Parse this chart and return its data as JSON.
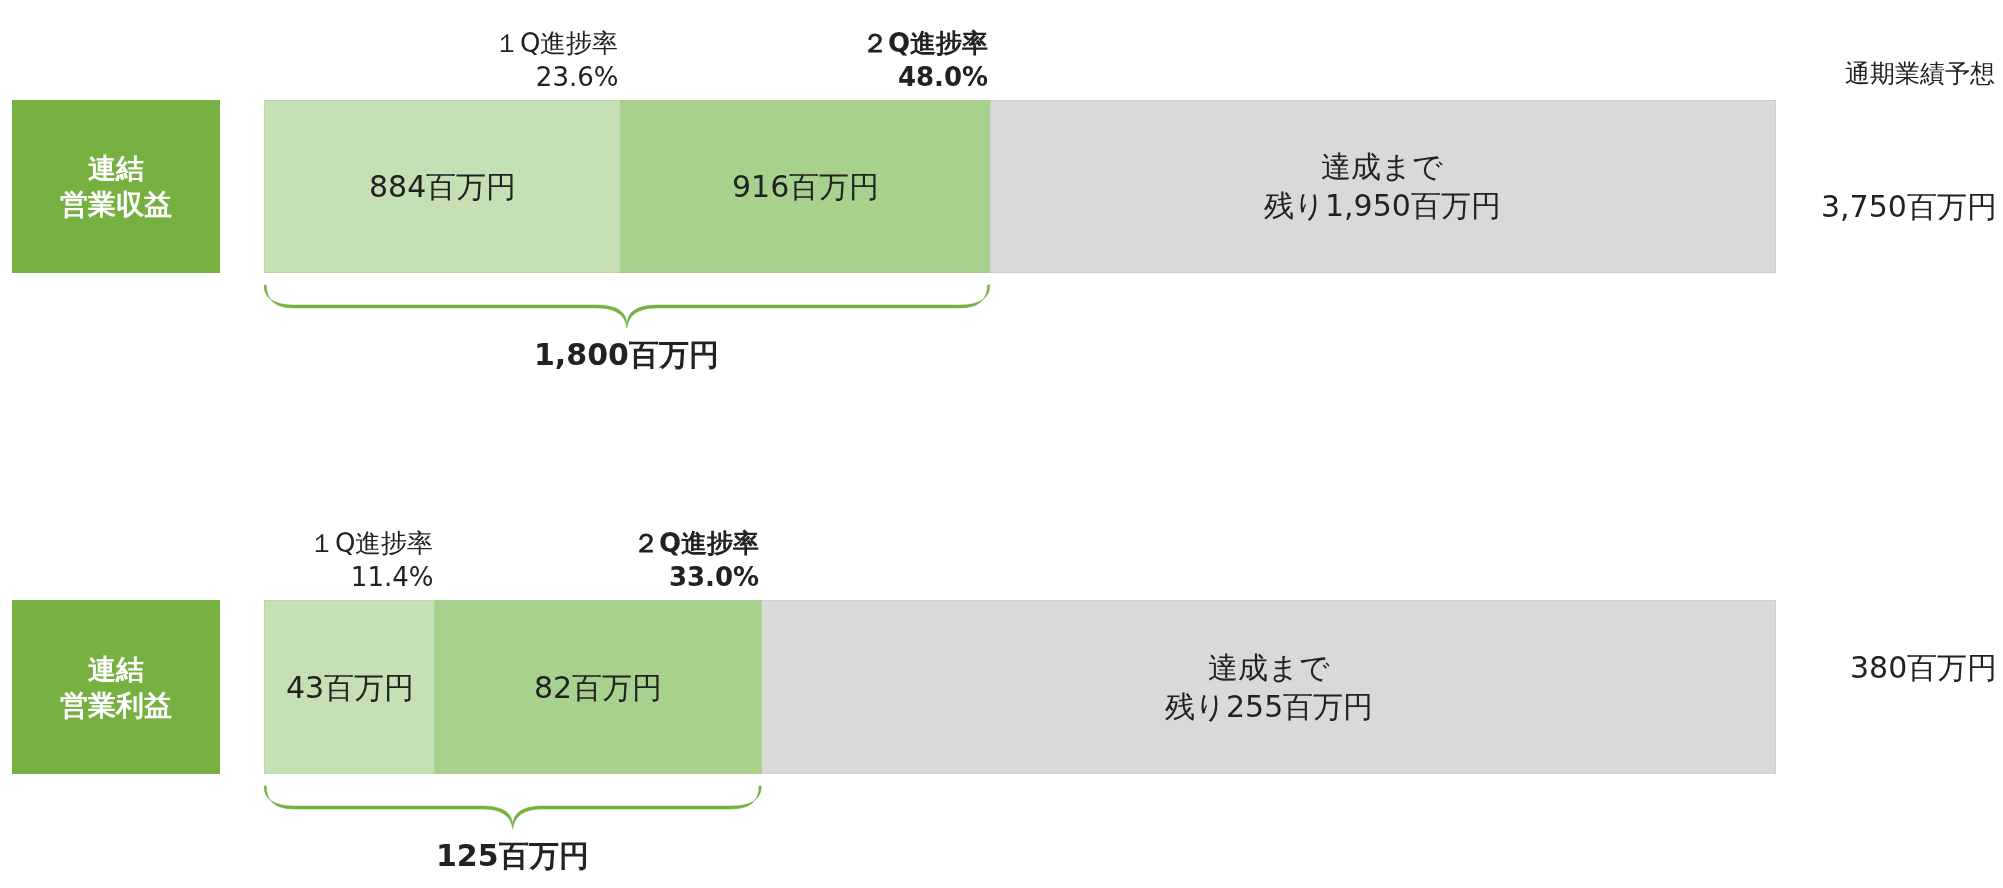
{
  "chart_data": [
    {
      "type": "bar",
      "orientation": "horizontal",
      "stacked": true,
      "categories": [
        "連結営業収益"
      ],
      "xlim": [
        0,
        3750
      ],
      "series": [
        {
          "color": "#c5e0b4",
          "values": [
            884
          ],
          "value_labels": [
            "884百万円"
          ]
        },
        {
          "color": "#a9d18e",
          "values": [
            916
          ],
          "value_labels": [
            "916百万円"
          ]
        },
        {
          "color": "#d9d9d9",
          "values": [
            1950
          ],
          "value_labels": [
            "達成まで残り1,950百万円"
          ]
        }
      ],
      "annotations": [
        "１Q進捗率\n23.6%",
        "２Q進捗率\n48.0%",
        "1,800百万円",
        "3,750百万円",
        "通期業績予想"
      ]
    },
    {
      "type": "bar",
      "orientation": "horizontal",
      "stacked": true,
      "categories": [
        "連結営業利益"
      ],
      "xlim": [
        0,
        380
      ],
      "series": [
        {
          "color": "#c5e0b4",
          "values": [
            43
          ],
          "value_labels": [
            "43百万円"
          ]
        },
        {
          "color": "#a9d18e",
          "values": [
            82
          ],
          "value_labels": [
            "82百万円"
          ]
        },
        {
          "color": "#d9d9d9",
          "values": [
            255
          ],
          "value_labels": [
            "達成まで残り255百万円"
          ]
        }
      ],
      "annotations": [
        "１Q進捗率\n11.4%",
        "２Q進捗率\n33.0%",
        "125百万円",
        "380百万円"
      ]
    }
  ]
}
